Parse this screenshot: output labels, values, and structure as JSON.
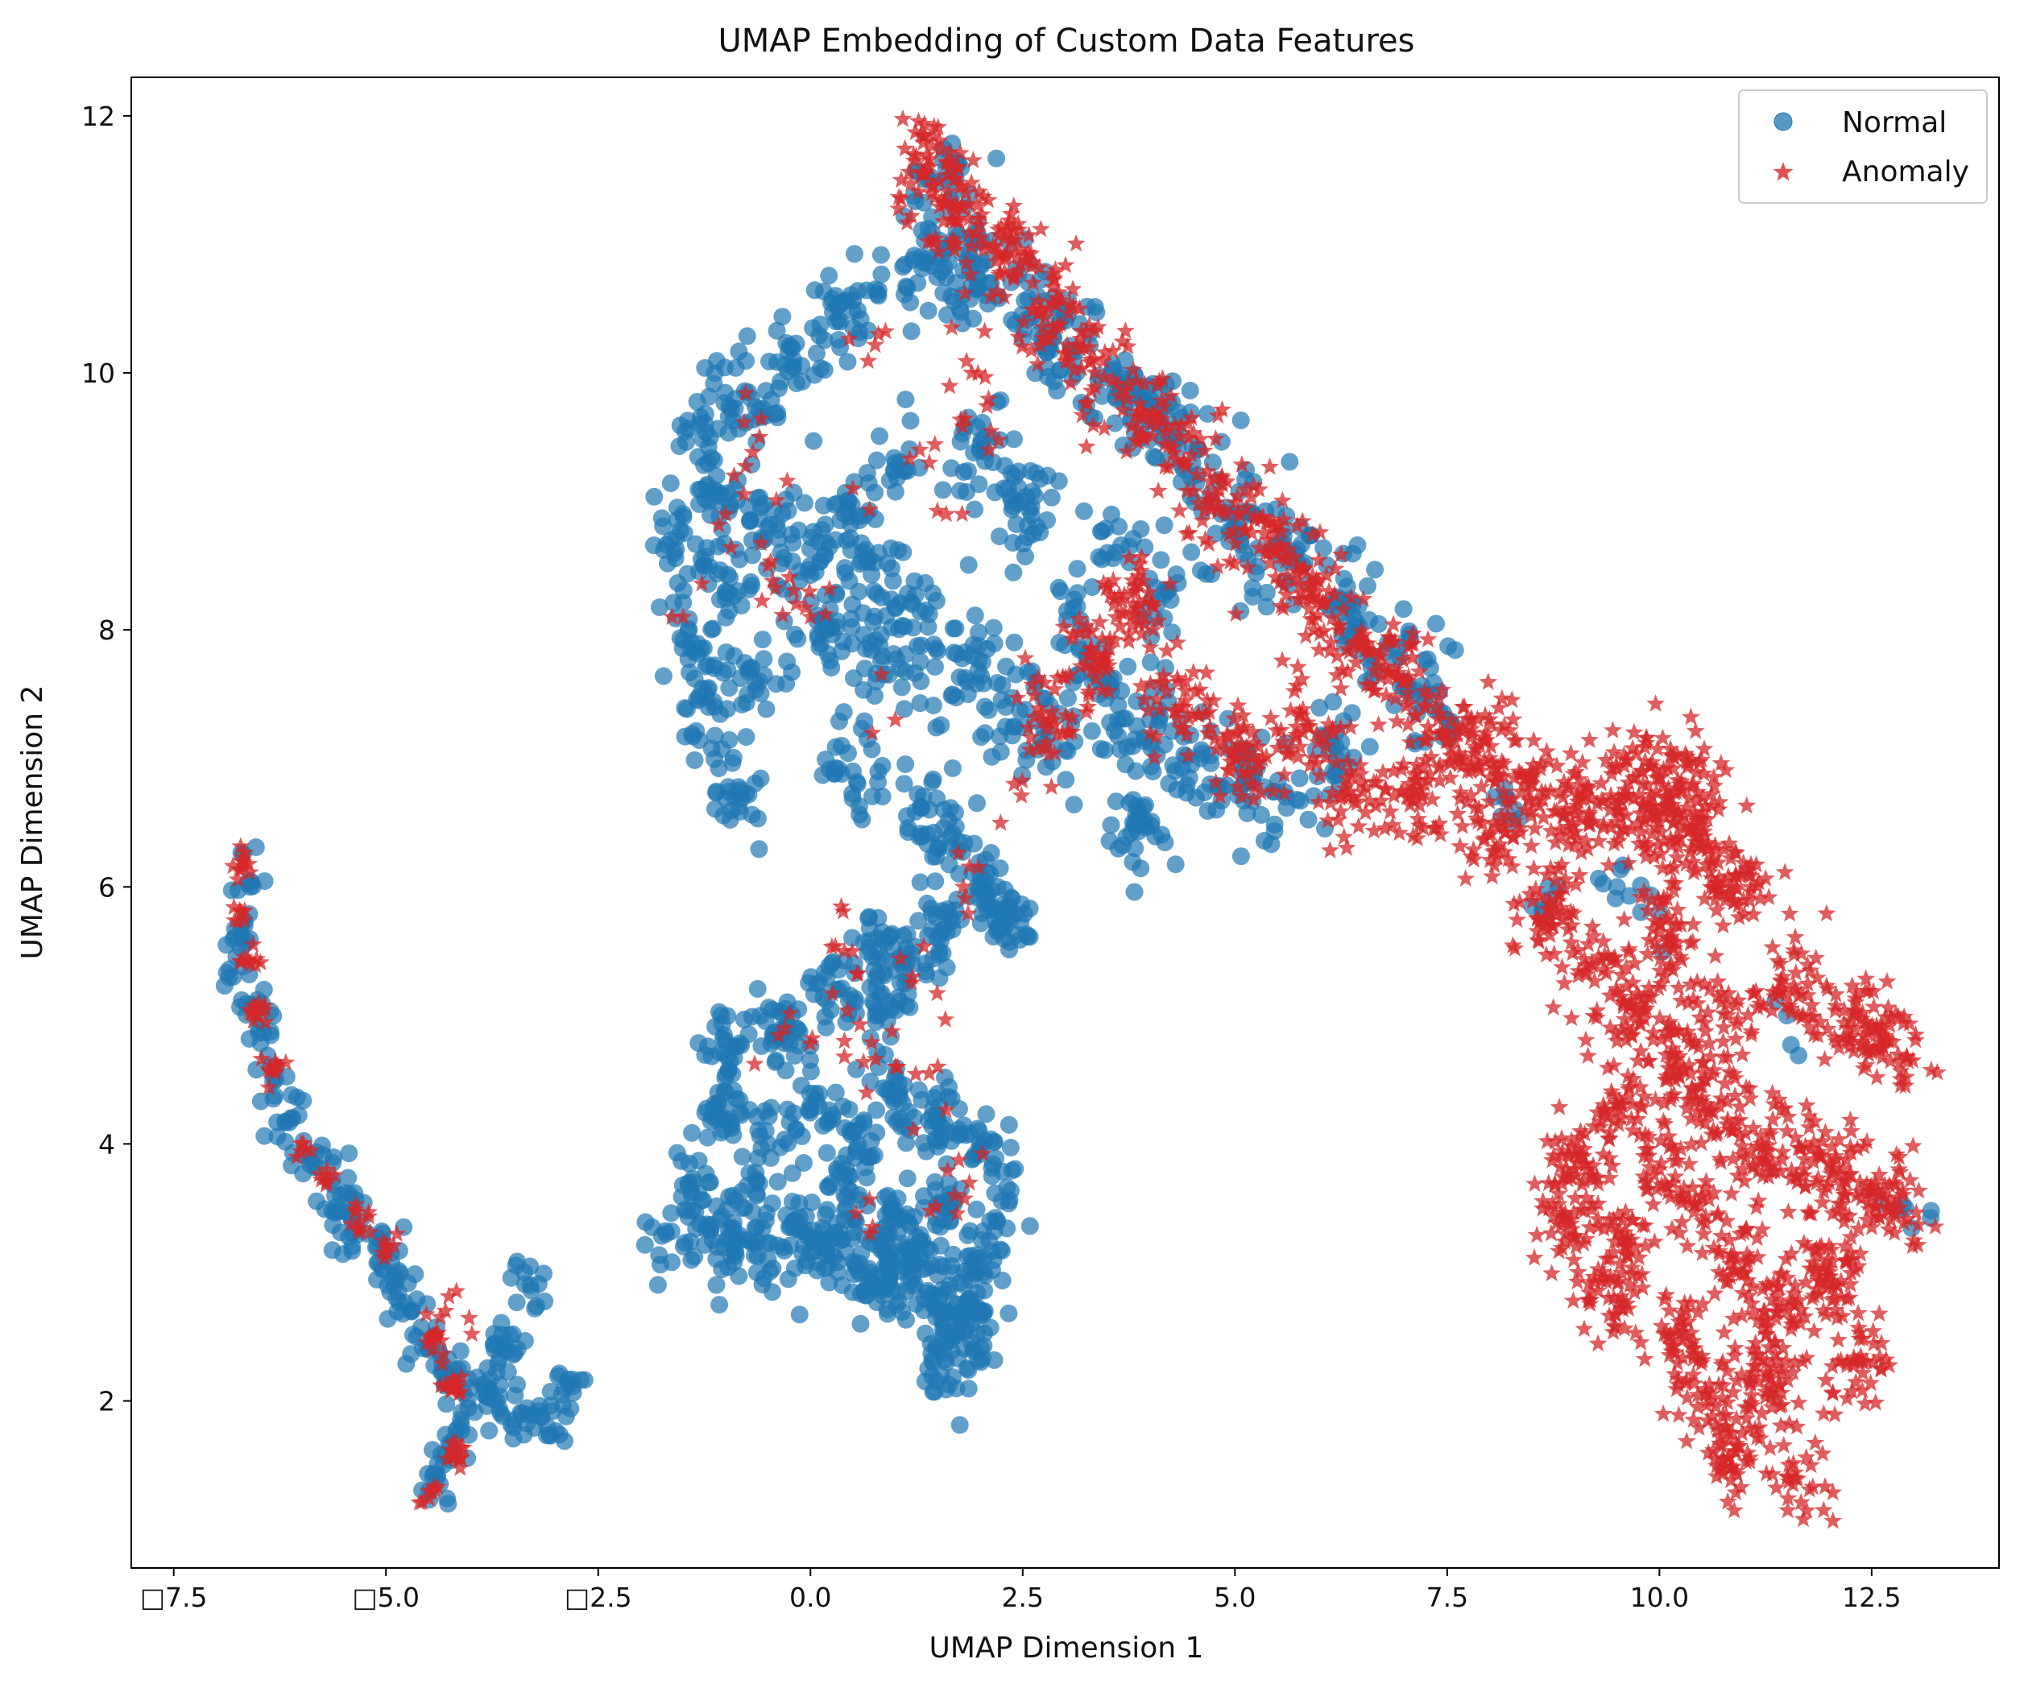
{
  "chart_data": {
    "type": "scatter",
    "title": "UMAP Embedding of Custom Data Features",
    "xlabel": "UMAP Dimension 1",
    "ylabel": "UMAP Dimension 2",
    "xlim": [
      -8.0,
      14.0
    ],
    "ylim": [
      0.7,
      12.3
    ],
    "x_ticks": [
      -7.5,
      -5.0,
      -2.5,
      0.0,
      2.5,
      5.0,
      7.5,
      10.0,
      12.5
    ],
    "x_tick_labels": [
      "□7.5",
      "□5.0",
      "□2.5",
      "0.0",
      "2.5",
      "5.0",
      "7.5",
      "10.0",
      "12.5"
    ],
    "y_ticks": [
      2,
      4,
      6,
      8,
      10,
      12
    ],
    "y_tick_labels": [
      "2",
      "4",
      "6",
      "8",
      "10",
      "12"
    ],
    "grid": false,
    "legend_position": "top-right",
    "series": [
      {
        "name": "Normal",
        "marker": "circle",
        "color": "#1f77b4",
        "alpha": 0.7,
        "clusters": [
          {
            "points": [
              [
                -6.8,
                5.3
              ],
              [
                -6.7,
                5.6
              ],
              [
                -6.6,
                6.0
              ],
              [
                -6.5,
                4.9
              ],
              [
                -6.3,
                4.5
              ],
              [
                -6.1,
                4.2
              ],
              [
                -5.9,
                3.9
              ],
              [
                -5.6,
                3.6
              ],
              [
                -5.4,
                3.4
              ],
              [
                -5.1,
                3.2
              ],
              [
                -4.9,
                2.9
              ],
              [
                -4.7,
                2.7
              ],
              [
                -4.5,
                2.4
              ],
              [
                -4.3,
                2.2
              ],
              [
                -4.0,
                2.1
              ],
              [
                -3.7,
                2.0
              ],
              [
                -3.4,
                1.9
              ],
              [
                -3.1,
                1.8
              ],
              [
                -2.9,
                2.1
              ],
              [
                -4.4,
                1.4
              ],
              [
                -4.2,
                1.7
              ],
              [
                -3.6,
                2.4
              ],
              [
                -3.3,
                2.9
              ]
            ],
            "spread": 0.12,
            "count": 300
          },
          {
            "points": [
              [
                -1.6,
                8.6
              ],
              [
                -1.2,
                9.0
              ],
              [
                -1.0,
                8.3
              ],
              [
                -0.5,
                8.8
              ],
              [
                0.0,
                8.5
              ],
              [
                0.4,
                8.9
              ],
              [
                0.8,
                8.6
              ],
              [
                1.2,
                8.2
              ],
              [
                -1.3,
                9.6
              ],
              [
                -0.7,
                9.8
              ],
              [
                -0.2,
                10.1
              ],
              [
                0.3,
                10.4
              ],
              [
                0.8,
                10.6
              ],
              [
                1.3,
                10.9
              ],
              [
                1.6,
                11.5
              ],
              [
                1.8,
                10.8
              ],
              [
                2.2,
                10.6
              ],
              [
                2.7,
                10.4
              ],
              [
                3.1,
                10.1
              ],
              [
                3.6,
                9.8
              ],
              [
                4.1,
                9.6
              ],
              [
                4.5,
                9.3
              ],
              [
                -1.4,
                7.9
              ],
              [
                -1.2,
                7.4
              ],
              [
                -0.6,
                7.6
              ],
              [
                0.2,
                8.0
              ],
              [
                0.7,
                7.9
              ],
              [
                1.3,
                7.6
              ],
              [
                1.9,
                7.8
              ],
              [
                2.3,
                7.4
              ],
              [
                2.8,
                7.2
              ],
              [
                3.4,
                7.5
              ],
              [
                4.0,
                7.3
              ],
              [
                4.6,
                7.0
              ],
              [
                5.1,
                6.8
              ],
              [
                5.6,
                6.7
              ],
              [
                6.2,
                7.0
              ],
              [
                3.8,
                6.5
              ],
              [
                3.2,
                8.0
              ],
              [
                3.5,
                8.6
              ],
              [
                4.2,
                8.3
              ],
              [
                5.0,
                8.8
              ],
              [
                5.6,
                8.6
              ],
              [
                6.3,
                8.2
              ],
              [
                6.8,
                7.9
              ],
              [
                7.3,
                7.5
              ],
              [
                1.4,
                6.6
              ],
              [
                1.5,
                6.3
              ],
              [
                -0.9,
                6.7
              ],
              [
                0.5,
                6.9
              ],
              [
                2.0,
                9.4
              ],
              [
                2.5,
                9.0
              ],
              [
                1.0,
                9.3
              ]
            ],
            "spread": 0.2,
            "count": 1300
          },
          {
            "points": [
              [
                -1.7,
                3.3
              ],
              [
                -1.4,
                3.6
              ],
              [
                -1.1,
                3.2
              ],
              [
                -0.8,
                3.5
              ],
              [
                -0.5,
                3.1
              ],
              [
                -0.2,
                3.4
              ],
              [
                0.1,
                3.2
              ],
              [
                0.4,
                3.6
              ],
              [
                0.7,
                3.0
              ],
              [
                1.0,
                3.4
              ],
              [
                1.3,
                3.1
              ],
              [
                1.6,
                3.5
              ],
              [
                1.9,
                3.0
              ],
              [
                2.2,
                3.4
              ],
              [
                -1.0,
                4.2
              ],
              [
                -0.5,
                4.0
              ],
              [
                0.0,
                4.3
              ],
              [
                0.5,
                4.1
              ],
              [
                1.0,
                4.4
              ],
              [
                1.5,
                4.2
              ],
              [
                2.0,
                4.0
              ],
              [
                -1.0,
                4.8
              ],
              [
                -0.3,
                4.9
              ],
              [
                0.3,
                5.2
              ],
              [
                0.8,
                5.0
              ],
              [
                1.2,
                5.4
              ],
              [
                1.6,
                5.7
              ],
              [
                2.0,
                6.0
              ],
              [
                2.3,
                5.8
              ],
              [
                0.8,
                5.5
              ],
              [
                1.6,
                2.7
              ],
              [
                1.6,
                2.3
              ],
              [
                0.9,
                2.9
              ],
              [
                1.9,
                2.6
              ]
            ],
            "spread": 0.16,
            "count": 900
          },
          {
            "points": [
              [
                5.2,
                8.9
              ],
              [
                5.8,
                8.5
              ],
              [
                6.4,
                8.1
              ],
              [
                7.0,
                7.6
              ],
              [
                7.5,
                7.3
              ],
              [
                8.3,
                6.6
              ],
              [
                8.7,
                5.9
              ],
              [
                9.5,
                6.0
              ],
              [
                10.0,
                5.8
              ],
              [
                11.5,
                5.0
              ],
              [
                12.9,
                3.5
              ]
            ],
            "spread": 0.15,
            "count": 60
          }
        ]
      },
      {
        "name": "Anomaly",
        "marker": "star",
        "color": "#d62728",
        "alpha": 0.75,
        "clusters": [
          {
            "points": [
              [
                -6.7,
                6.2
              ],
              [
                -6.7,
                5.8
              ],
              [
                -6.6,
                5.4
              ],
              [
                -6.5,
                5.0
              ],
              [
                -6.3,
                4.6
              ],
              [
                -6.0,
                4.0
              ],
              [
                -5.7,
                3.7
              ],
              [
                -5.3,
                3.4
              ],
              [
                -5.0,
                3.2
              ],
              [
                -4.4,
                2.5
              ],
              [
                -4.2,
                2.1
              ],
              [
                -4.2,
                1.6
              ],
              [
                -4.5,
                1.3
              ]
            ],
            "spread": 0.06,
            "count": 120
          },
          {
            "points": [
              [
                1.4,
                11.6
              ],
              [
                1.7,
                11.3
              ],
              [
                2.3,
                10.9
              ],
              [
                2.8,
                10.5
              ],
              [
                3.3,
                10.1
              ],
              [
                3.9,
                9.7
              ],
              [
                4.4,
                9.3
              ],
              [
                4.9,
                8.9
              ],
              [
                5.4,
                8.6
              ],
              [
                5.9,
                8.3
              ],
              [
                6.5,
                7.9
              ],
              [
                7.0,
                7.6
              ],
              [
                7.5,
                7.2
              ],
              [
                8.0,
                7.0
              ],
              [
                8.5,
                6.8
              ],
              [
                9.0,
                6.6
              ],
              [
                9.5,
                6.6
              ],
              [
                10.0,
                6.5
              ],
              [
                10.5,
                6.3
              ],
              [
                8.0,
                6.4
              ],
              [
                7.2,
                6.7
              ],
              [
                6.4,
                6.7
              ],
              [
                5.8,
                7.2
              ],
              [
                5.0,
                7.0
              ],
              [
                4.4,
                7.4
              ],
              [
                3.8,
                8.2
              ],
              [
                3.3,
                7.8
              ],
              [
                2.8,
                7.3
              ],
              [
                8.7,
                5.9
              ],
              [
                9.2,
                5.4
              ],
              [
                9.7,
                5.0
              ],
              [
                10.2,
                4.6
              ],
              [
                10.7,
                4.3
              ],
              [
                11.2,
                4.0
              ],
              [
                11.7,
                3.8
              ],
              [
                12.2,
                3.7
              ],
              [
                12.7,
                3.5
              ],
              [
                9.5,
                4.3
              ],
              [
                10.0,
                3.8
              ],
              [
                10.5,
                3.4
              ],
              [
                11.0,
                3.0
              ],
              [
                11.5,
                2.7
              ],
              [
                12.0,
                3.0
              ],
              [
                12.4,
                2.3
              ],
              [
                9.0,
                3.8
              ],
              [
                9.6,
                3.2
              ],
              [
                10.3,
                2.5
              ],
              [
                10.6,
                2.0
              ],
              [
                10.9,
                1.6
              ],
              [
                11.6,
                1.4
              ],
              [
                11.3,
                2.2
              ],
              [
                10.8,
                5.0
              ],
              [
                11.6,
                5.2
              ],
              [
                12.3,
                4.9
              ],
              [
                12.7,
                4.8
              ],
              [
                9.4,
                2.8
              ],
              [
                8.9,
                3.4
              ],
              [
                10.1,
                5.6
              ],
              [
                10.9,
                6.0
              ],
              [
                10.4,
                6.8
              ],
              [
                9.8,
                6.9
              ]
            ],
            "spread": 0.2,
            "count": 2600
          },
          {
            "points": [
              [
                -0.9,
                9.2
              ],
              [
                -0.5,
                8.5
              ],
              [
                0.0,
                8.1
              ],
              [
                0.5,
                9.1
              ],
              [
                1.0,
                7.3
              ],
              [
                1.6,
                8.9
              ],
              [
                -1.5,
                8.1
              ],
              [
                -1.0,
                8.9
              ],
              [
                0.8,
                10.3
              ],
              [
                1.9,
                10.0
              ],
              [
                2.1,
                9.4
              ],
              [
                0.4,
                5.5
              ],
              [
                1.2,
                5.3
              ],
              [
                1.8,
                6.0
              ],
              [
                1.5,
                4.6
              ],
              [
                -0.3,
                4.9
              ],
              [
                0.4,
                4.8
              ],
              [
                1.0,
                4.6
              ],
              [
                0.7,
                3.3
              ],
              [
                1.7,
                3.6
              ],
              [
                -4.3,
                2.7
              ],
              [
                1.4,
                9.3
              ],
              [
                -0.6,
                9.5
              ],
              [
                2.4,
                6.8
              ]
            ],
            "spread": 0.2,
            "count": 110
          }
        ]
      }
    ]
  },
  "legend": [
    {
      "label": "Normal",
      "marker": "circle",
      "color": "#1f77b4"
    },
    {
      "label": "Anomaly",
      "marker": "star",
      "color": "#d62728"
    }
  ]
}
